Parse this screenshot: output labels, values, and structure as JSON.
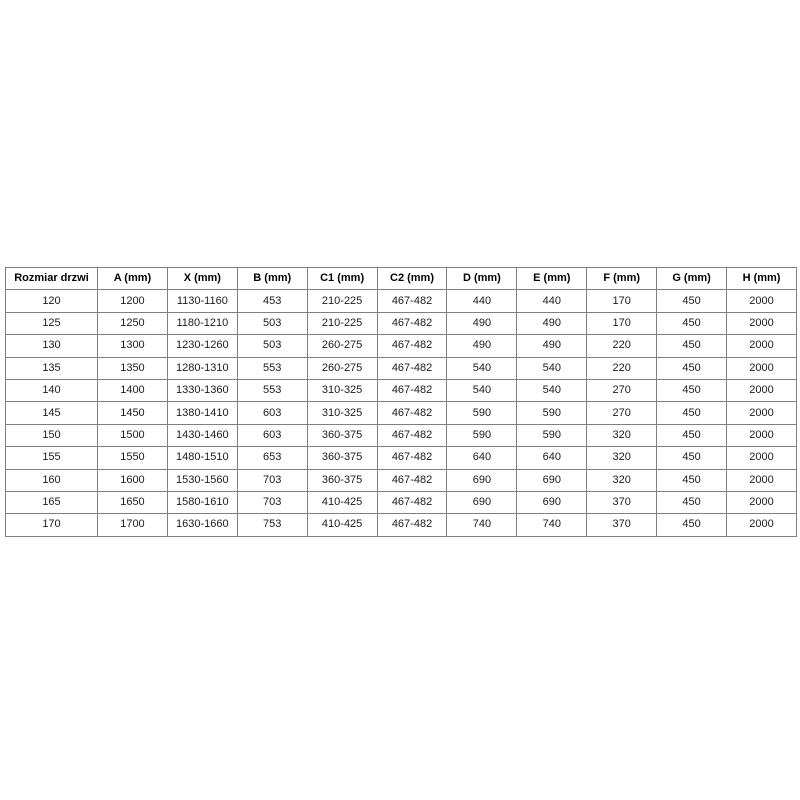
{
  "page": {
    "background_color": "#ffffff"
  },
  "table": {
    "border_color": "#808080",
    "header_text_color": "#000000",
    "body_text_color": "#1c1c1c",
    "columns": [
      "Rozmiar drzwi",
      "A (mm)",
      "X (mm)",
      "B (mm)",
      "C1 (mm)",
      "C2 (mm)",
      "D (mm)",
      "E (mm)",
      "F (mm)",
      "G (mm)",
      "H (mm)"
    ],
    "rows": [
      [
        "120",
        "1200",
        "1130-1160",
        "453",
        "210-225",
        "467-482",
        "440",
        "440",
        "170",
        "450",
        "2000"
      ],
      [
        "125",
        "1250",
        "1180-1210",
        "503",
        "210-225",
        "467-482",
        "490",
        "490",
        "170",
        "450",
        "2000"
      ],
      [
        "130",
        "1300",
        "1230-1260",
        "503",
        "260-275",
        "467-482",
        "490",
        "490",
        "220",
        "450",
        "2000"
      ],
      [
        "135",
        "1350",
        "1280-1310",
        "553",
        "260-275",
        "467-482",
        "540",
        "540",
        "220",
        "450",
        "2000"
      ],
      [
        "140",
        "1400",
        "1330-1360",
        "553",
        "310-325",
        "467-482",
        "540",
        "540",
        "270",
        "450",
        "2000"
      ],
      [
        "145",
        "1450",
        "1380-1410",
        "603",
        "310-325",
        "467-482",
        "590",
        "590",
        "270",
        "450",
        "2000"
      ],
      [
        "150",
        "1500",
        "1430-1460",
        "603",
        "360-375",
        "467-482",
        "590",
        "590",
        "320",
        "450",
        "2000"
      ],
      [
        "155",
        "1550",
        "1480-1510",
        "653",
        "360-375",
        "467-482",
        "640",
        "640",
        "320",
        "450",
        "2000"
      ],
      [
        "160",
        "1600",
        "1530-1560",
        "703",
        "360-375",
        "467-482",
        "690",
        "690",
        "320",
        "450",
        "2000"
      ],
      [
        "165",
        "1650",
        "1580-1610",
        "703",
        "410-425",
        "467-482",
        "690",
        "690",
        "370",
        "450",
        "2000"
      ],
      [
        "170",
        "1700",
        "1630-1660",
        "753",
        "410-425",
        "467-482",
        "740",
        "740",
        "370",
        "450",
        "2000"
      ]
    ]
  }
}
